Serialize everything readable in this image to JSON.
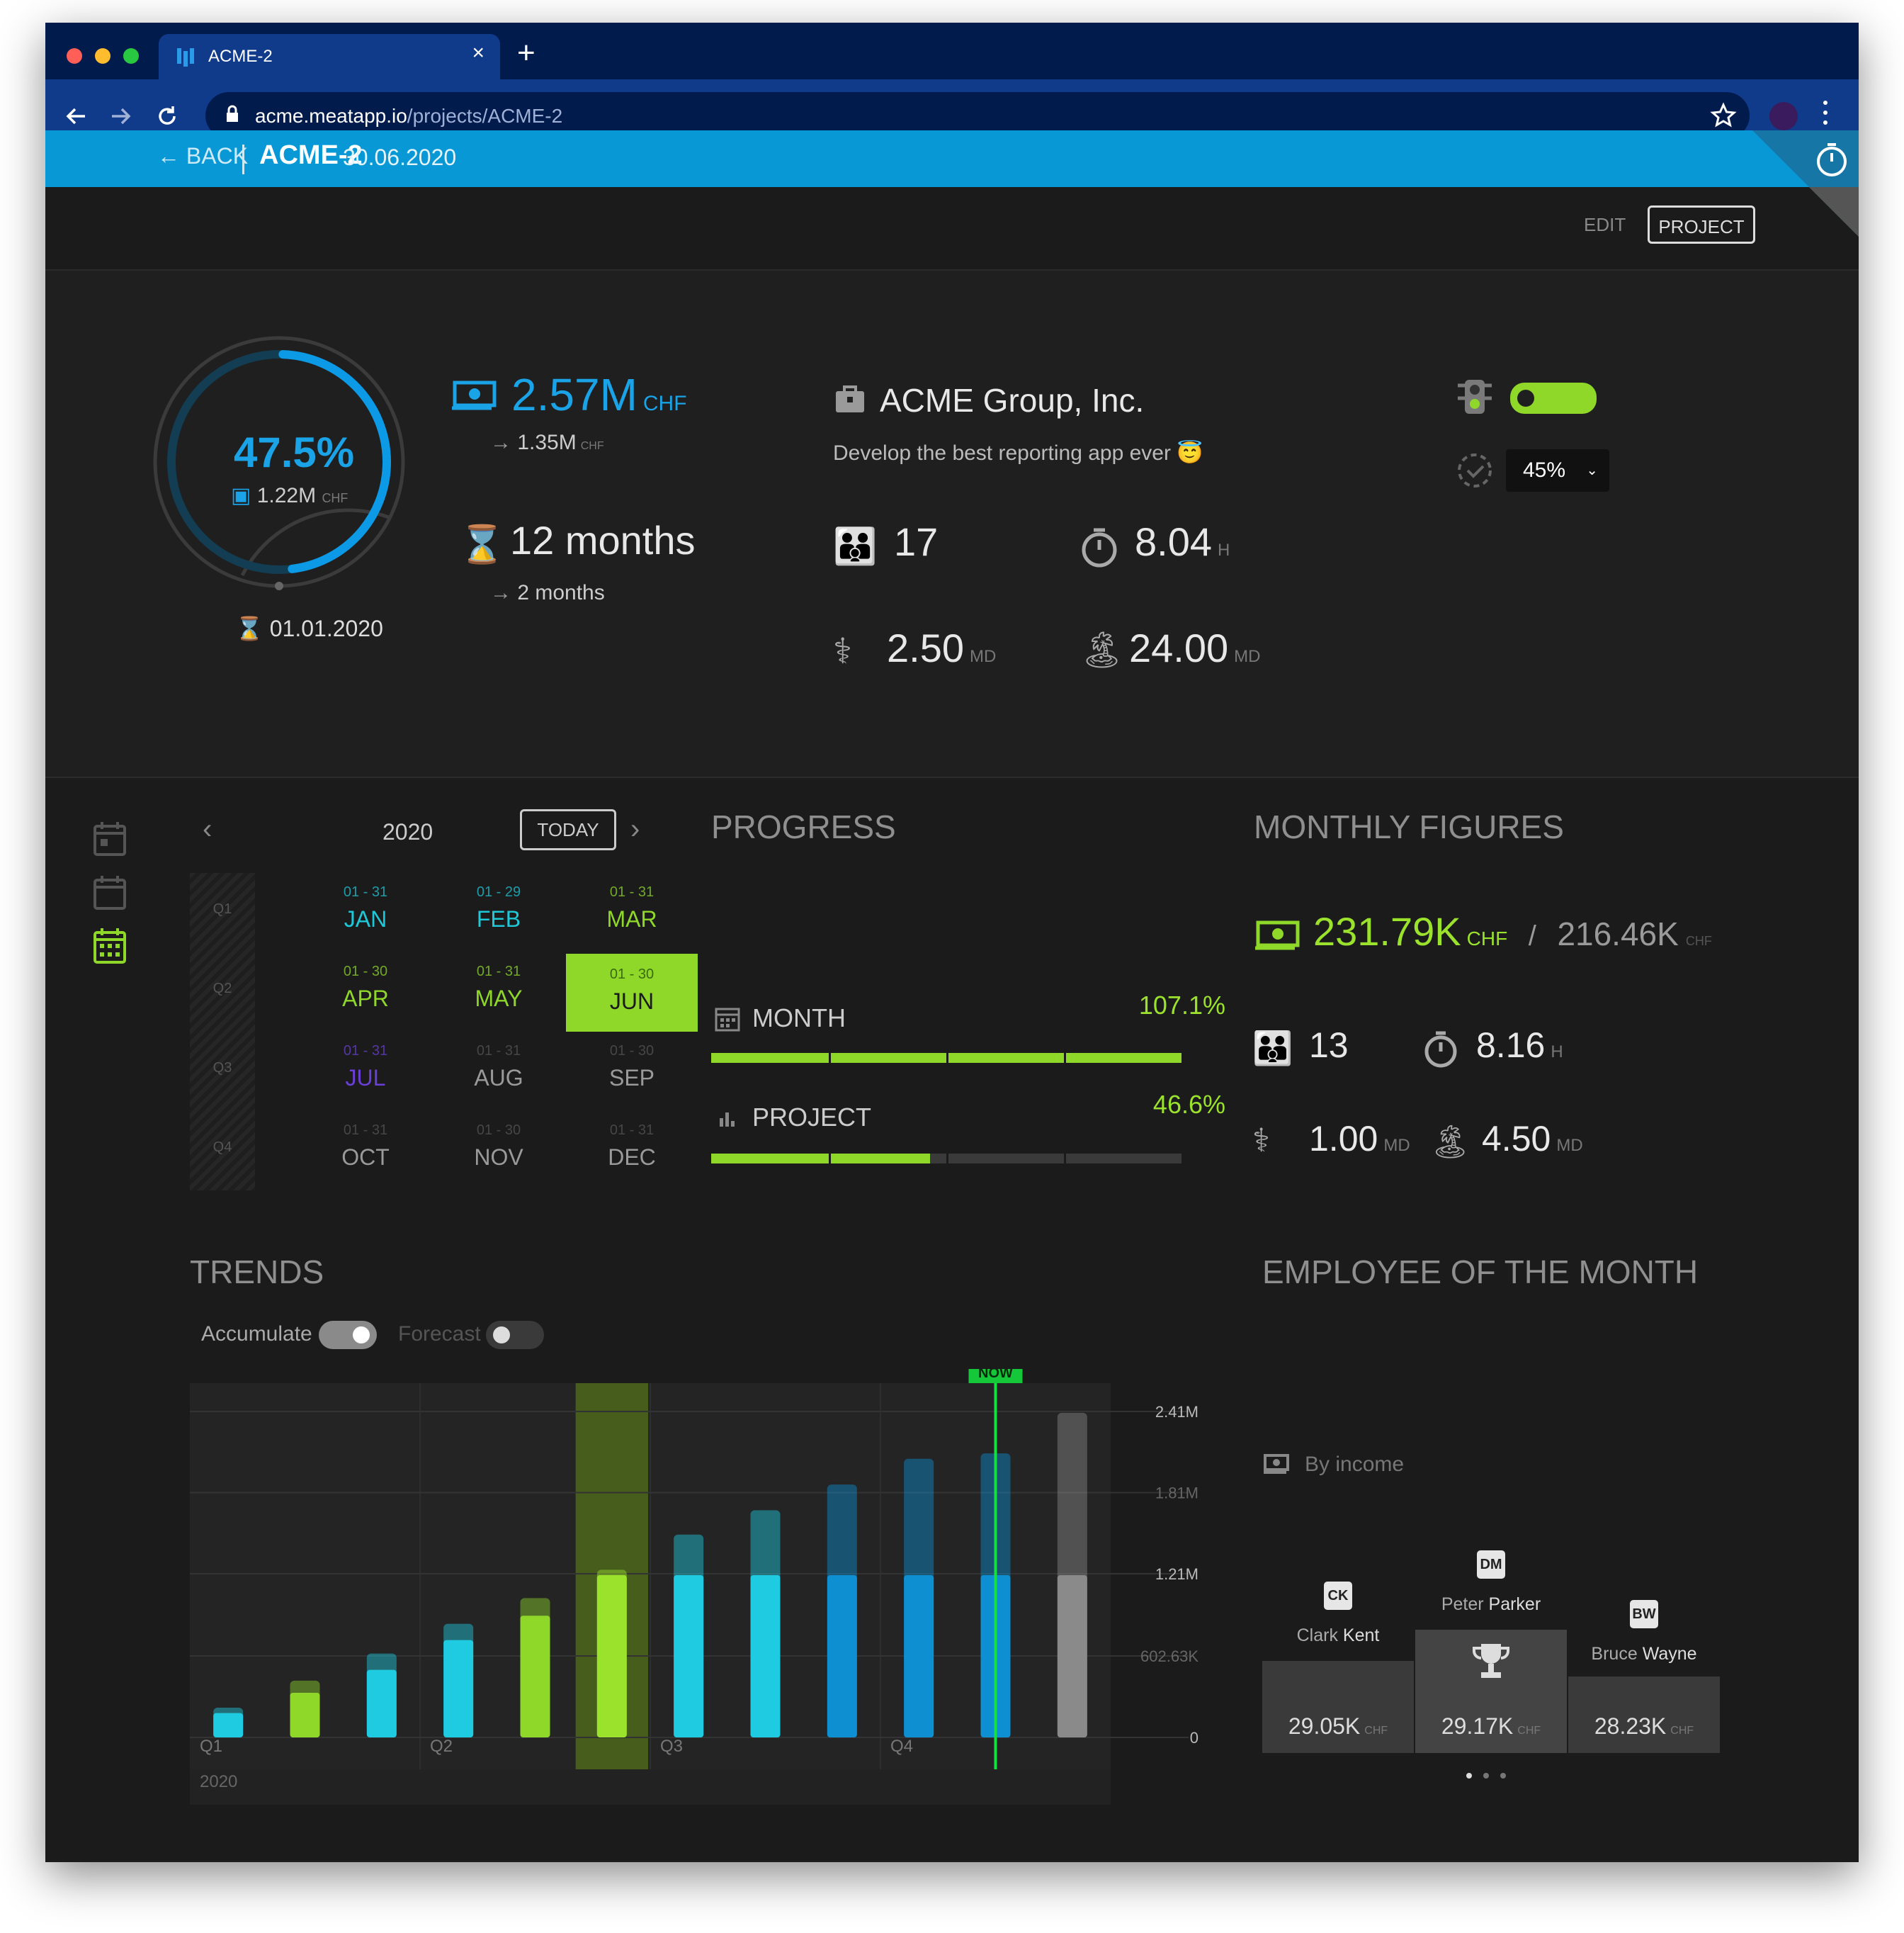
{
  "browser": {
    "tab_title": "ACME-2",
    "url_host": "acme.meatapp.io",
    "url_path": "/projects/ACME-2",
    "close_glyph": "×",
    "new_tab_glyph": "+"
  },
  "header": {
    "back_label": "BACK",
    "project_code": "ACME-2",
    "project_date": "30.06.2020",
    "edit_label": "EDIT",
    "project_button": "PROJECT"
  },
  "overview": {
    "gauge_percent": "47.5%",
    "gauge_fraction": 0.475,
    "gauge_amount": "1.22M",
    "gauge_unit": "CHF",
    "start_date": "01.01.2020",
    "budget": "2.57M",
    "budget_unit": "CHF",
    "budget_sub": "1.35M",
    "budget_sub_unit": "CHF",
    "duration": "12 months",
    "duration_sub": "2 months",
    "client": "ACME Group, Inc.",
    "description": "Develop the best reporting app ever 😇",
    "people": "17",
    "hours": "8.04",
    "hours_unit": "H",
    "sick": "2.50",
    "sick_unit": "MD",
    "vacation": "24.00",
    "vacation_unit": "MD",
    "rate_select": "45%"
  },
  "calendar": {
    "year": "2020",
    "today_label": "TODAY",
    "quarters": [
      "Q1",
      "Q2",
      "Q3",
      "Q4"
    ],
    "months": [
      {
        "range": "01 - 31",
        "name": "JAN",
        "color": "#1ec8d8"
      },
      {
        "range": "01 - 29",
        "name": "FEB",
        "color": "#1ec8d8"
      },
      {
        "range": "01 - 31",
        "name": "MAR",
        "color": "#8fd82a"
      },
      {
        "range": "01 - 30",
        "name": "APR",
        "color": "#8fd82a"
      },
      {
        "range": "01 - 31",
        "name": "MAY",
        "color": "#8fd82a"
      },
      {
        "range": "01 - 30",
        "name": "JUN",
        "color": "#1b1b1b"
      },
      {
        "range": "01 - 31",
        "name": "JUL",
        "color": "#6a3fd6"
      },
      {
        "range": "01 - 31",
        "name": "AUG",
        "color": "#9a9a9a"
      },
      {
        "range": "01 - 30",
        "name": "SEP",
        "color": "#9a9a9a"
      },
      {
        "range": "01 - 31",
        "name": "OCT",
        "color": "#9a9a9a"
      },
      {
        "range": "01 - 30",
        "name": "NOV",
        "color": "#9a9a9a"
      },
      {
        "range": "01 - 31",
        "name": "DEC",
        "color": "#9a9a9a"
      }
    ]
  },
  "progress": {
    "title": "PROGRESS",
    "month_label": "MONTH",
    "month_value": "107.1%",
    "month_fraction": 1.0,
    "project_label": "PROJECT",
    "project_value": "46.6%",
    "project_fraction": 0.466
  },
  "monthly": {
    "title": "MONTHLY FIGURES",
    "income": "231.79K",
    "income_unit": "CHF",
    "slash": "/",
    "target": "216.46K",
    "target_unit": "CHF",
    "people": "13",
    "hours": "8.16",
    "hours_unit": "H",
    "sick": "1.00",
    "sick_unit": "MD",
    "vacation": "4.50",
    "vacation_unit": "MD"
  },
  "trends": {
    "title": "TRENDS",
    "accumulate_label": "Accumulate",
    "forecast_label": "Forecast",
    "now_label": "NOW",
    "year_label": "2020"
  },
  "chart_data": {
    "type": "bar",
    "categories": [
      "JAN",
      "FEB",
      "MAR",
      "APR",
      "MAY",
      "JUN",
      "JUL",
      "AUG",
      "SEP",
      "OCT",
      "NOV",
      "DEC"
    ],
    "x_tick_labels": [
      "Q1",
      "Q2",
      "Q3",
      "Q4"
    ],
    "series": [
      {
        "values": [
          0.18,
          0.33,
          0.5,
          0.72,
          0.9,
          1.2,
          1.2,
          1.2,
          1.2,
          1.2,
          1.2,
          1.2
        ]
      },
      {
        "values": [
          0.22,
          0.42,
          0.62,
          0.84,
          1.03,
          1.24,
          1.5,
          1.68,
          1.87,
          2.06,
          2.1,
          2.4
        ]
      }
    ],
    "colors": [
      "#1ecbe1",
      "#8fd82a",
      "#1ecbe1",
      "#1ecbe1",
      "#8fd82a",
      "#9be22d",
      "#1ecbe1",
      "#1ecbe1",
      "#0e8fd2",
      "#0e8fd2",
      "#0e8fd2",
      "#8a8a8a"
    ],
    "y_tick_labels": [
      "2.41M",
      "1.81M",
      "1.21M",
      "602.63K",
      "0"
    ],
    "y_ticks": [
      2.41,
      1.81,
      1.21,
      0.60263,
      0
    ],
    "ylim": [
      0,
      2.41
    ],
    "highlight_category": "JUN",
    "now_position": 10.5
  },
  "employee": {
    "title": "EMPLOYEE OF THE MONTH",
    "by_income": "By income",
    "people": [
      {
        "initials": "CK",
        "first": "Clark",
        "last": "Kent",
        "amount": "29.05K",
        "unit": "CHF"
      },
      {
        "initials": "DM",
        "first": "Peter",
        "last": "Parker",
        "amount": "29.17K",
        "unit": "CHF"
      },
      {
        "initials": "BW",
        "first": "Bruce",
        "last": "Wayne",
        "amount": "28.23K",
        "unit": "CHF"
      }
    ]
  }
}
